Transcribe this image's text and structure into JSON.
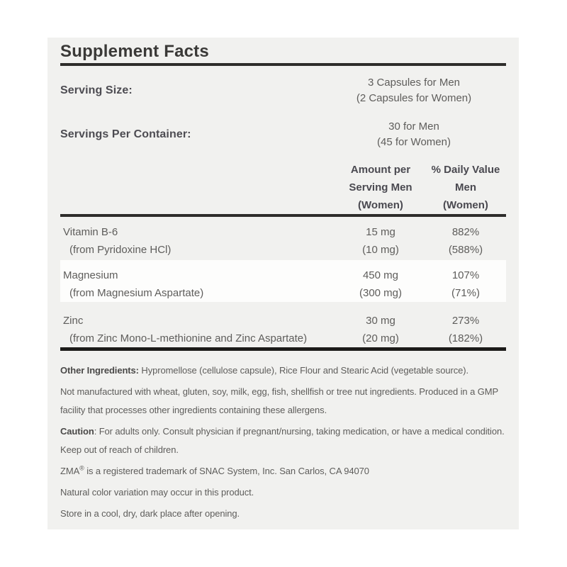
{
  "panel": {
    "title": "Supplement Facts",
    "serving_info": [
      {
        "label": "Serving Size:",
        "value_line1": "3 Capsules for Men",
        "value_line2": "(2 Capsules for Women)"
      },
      {
        "label": "Servings Per Container:",
        "value_line1": "30 for Men",
        "value_line2": "(45 for Women)"
      }
    ],
    "table": {
      "headers": {
        "amount": [
          "Amount per",
          "Serving Men",
          "(Women)"
        ],
        "daily_value": [
          "% Daily Value",
          "Men",
          "(Women)"
        ]
      },
      "rows": [
        {
          "name": "Vitamin B-6",
          "source": "(from Pyridoxine HCl)",
          "amount": "15 mg",
          "amount_women": "(10 mg)",
          "dv": "882%",
          "dv_women": "(588%)",
          "highlight": false
        },
        {
          "name": "Magnesium",
          "source": "(from Magnesium Aspartate)",
          "amount": "450 mg",
          "amount_women": "(300 mg)",
          "dv": "107%",
          "dv_women": "(71%)",
          "highlight": true
        },
        {
          "name": "Zinc",
          "source": "(from Zinc Mono-L-methionine and Zinc Aspartate)",
          "amount": "30 mg",
          "amount_women": "(20 mg)",
          "dv": "273%",
          "dv_women": "(182%)",
          "highlight": false
        }
      ]
    },
    "footnotes": {
      "other_ingredients_label": "Other Ingredients:",
      "other_ingredients_text": " Hypromellose (cellulose capsule), Rice Flour and Stearic Acid (vegetable source).",
      "allergen_text": "Not manufactured with wheat, gluten, soy, milk, egg, fish, shellfish or tree nut ingredients. Produced in a GMP facility that processes other ingredients containing these allergens.",
      "caution_label": "Caution",
      "caution_text": ": For adults only. Consult physician if pregnant/nursing, taking medication, or have a medical condition. Keep out of reach of children.",
      "trademark_brand": "ZMA",
      "trademark_symbol": "®",
      "trademark_text": " is a registered trademark of SNAC System, Inc. San Carlos, CA 94070",
      "color_note": "Natural color variation may occur in this product.",
      "storage_note": "Store in a cool, dry, dark place after opening."
    }
  },
  "colors": {
    "panel_background": "#f1f1ef",
    "highlight_row": "#fdfdfc",
    "divider": "#2e2d2b",
    "bottom_divider": "#1c1b19",
    "title_text": "#3a3937",
    "body_text": "#5e5d5b"
  }
}
